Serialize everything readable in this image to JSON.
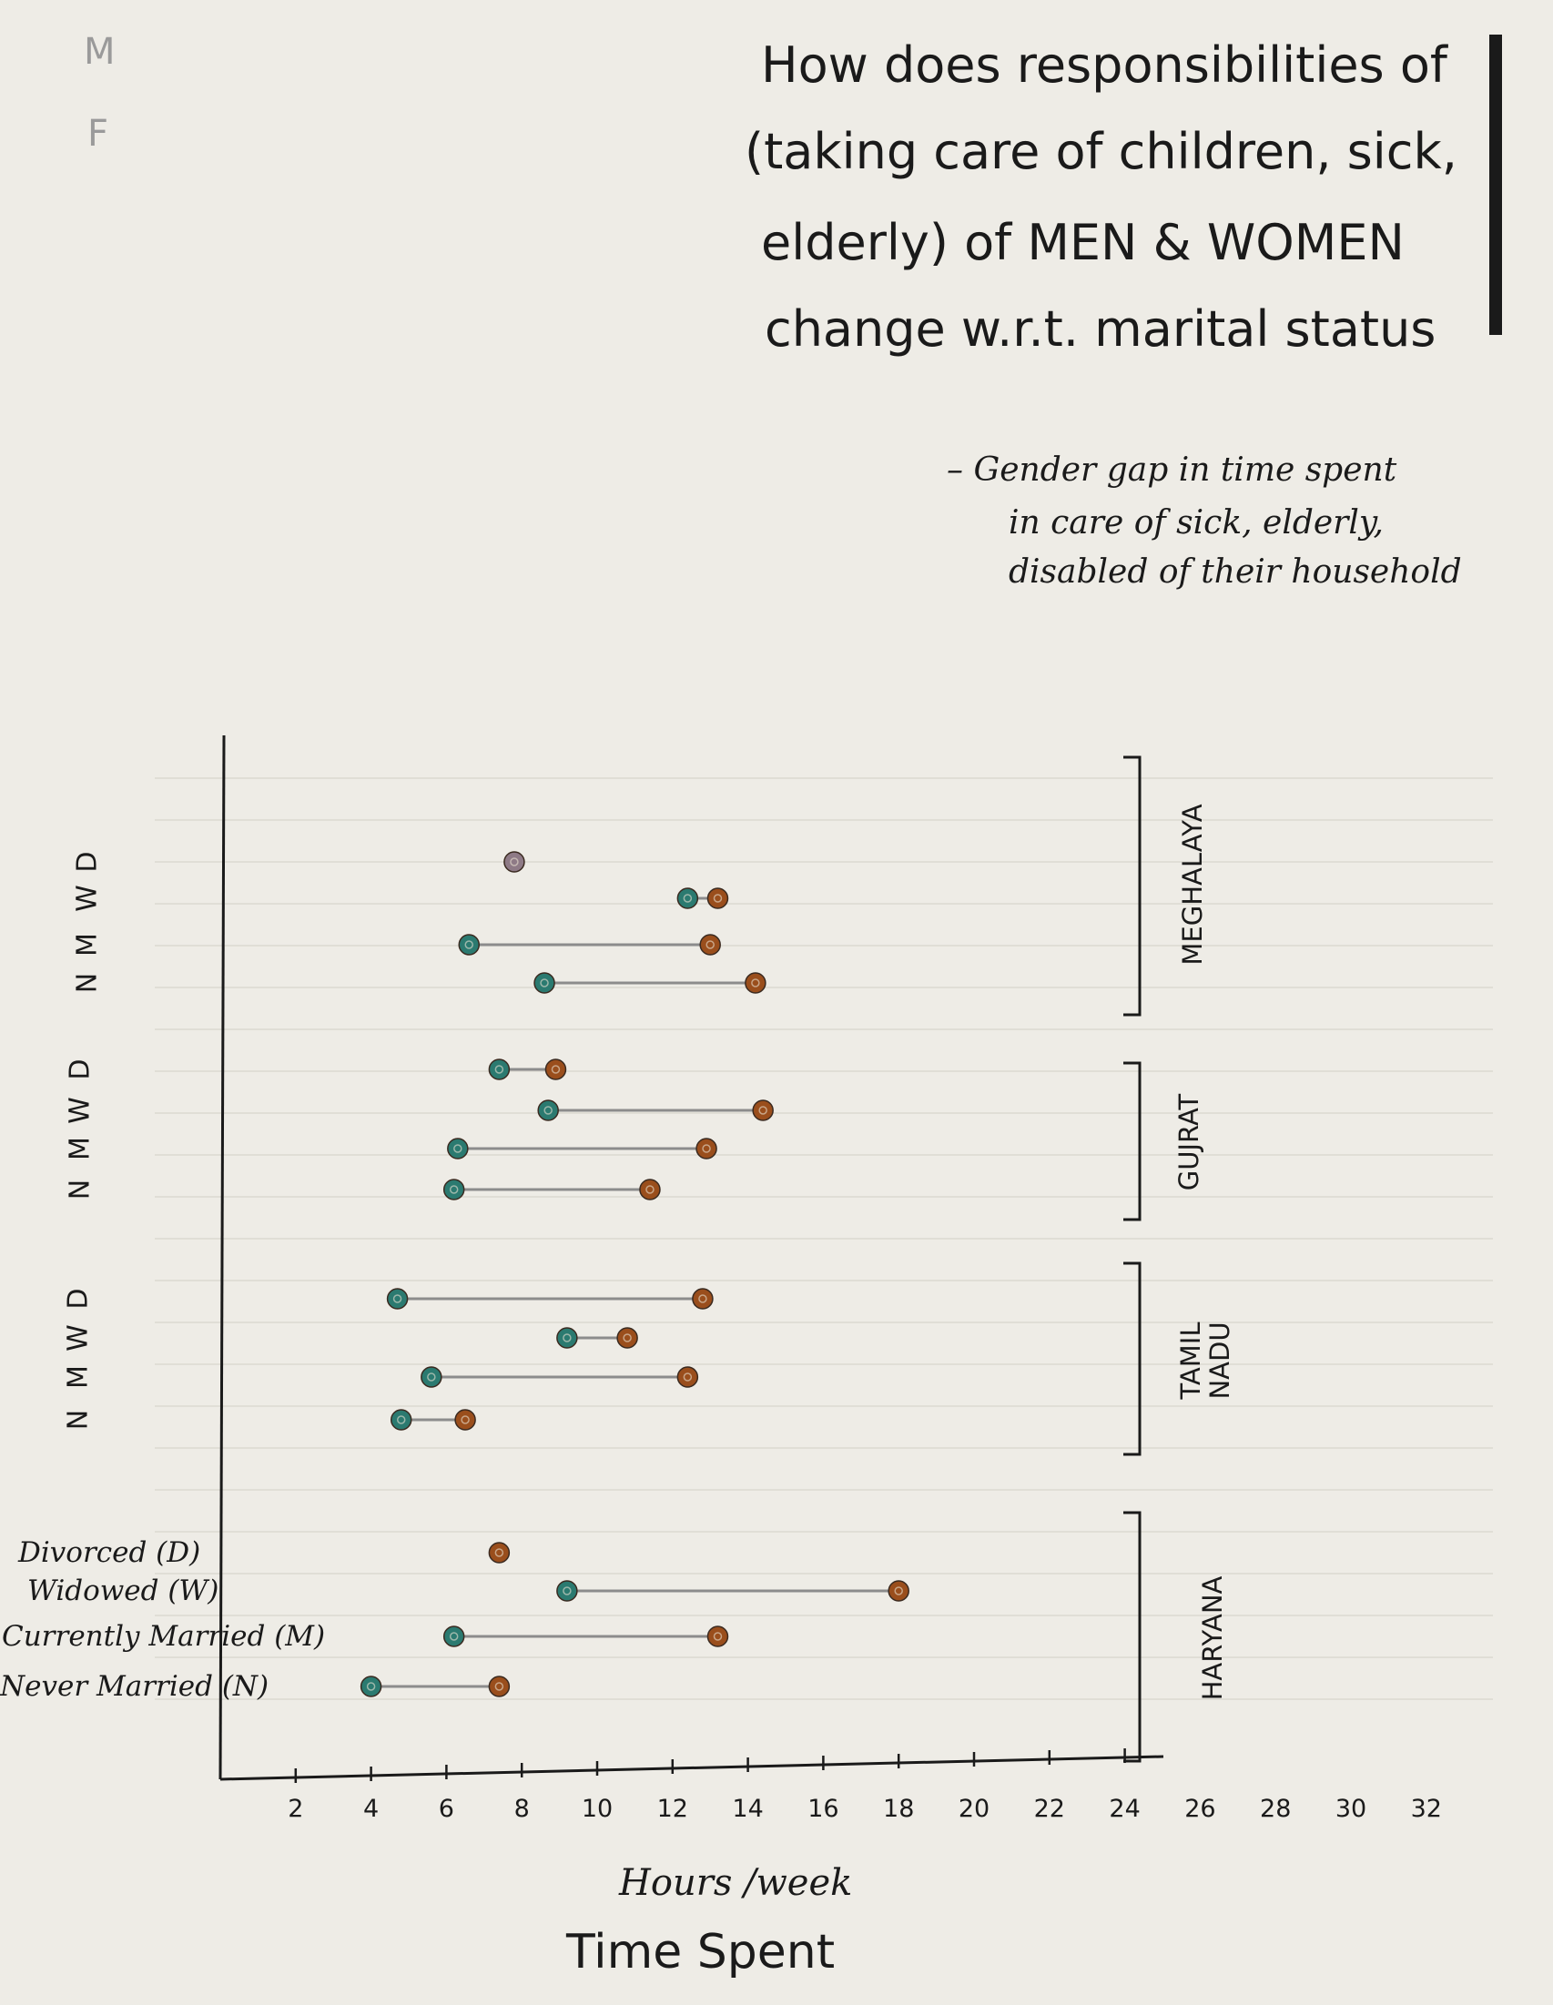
{
  "title": {
    "lines": [
      "How does responsibilities of",
      "(taking care of children, sick,",
      "elderly) of MEN & WOMEN",
      "change w.r.t. marital status"
    ]
  },
  "subtitle": {
    "lines": [
      "– Gender gap in time spent",
      "in care of sick, elderly,",
      "disabled of their household"
    ]
  },
  "corner_marks": {
    "m": "M",
    "f": "F"
  },
  "colors": {
    "men": "#2b7a70",
    "women": "#9a4e1c",
    "single": "#8e7a86",
    "connector": "#8c8c8c",
    "axis": "#1a1a1a",
    "paper": "#eeece6"
  },
  "chart_data": {
    "type": "dumbbell",
    "xlabel": "Hours /week",
    "xtitle": "Time Spent",
    "xlim": [
      0,
      32
    ],
    "xticks": [
      "2",
      "4",
      "6",
      "8",
      "10",
      "12",
      "14",
      "16",
      "18",
      "20",
      "22",
      "24",
      "26",
      "28",
      "30",
      "32"
    ],
    "row_letters": [
      "D",
      "W",
      "M",
      "N"
    ],
    "row_full_labels": [
      "Divorced (D)",
      "Widowed (W)",
      "Currently Married (M)",
      "Never Married (N)"
    ],
    "groups": [
      {
        "name": "MEGHALAYA",
        "rows": [
          {
            "status": "D",
            "men": null,
            "women": null,
            "single": 7.8
          },
          {
            "status": "W",
            "men": 12.4,
            "women": 13.2
          },
          {
            "status": "M",
            "men": 6.6,
            "women": 13.0
          },
          {
            "status": "N",
            "men": 8.6,
            "women": 14.2
          }
        ]
      },
      {
        "name": "GUJRAT",
        "rows": [
          {
            "status": "D",
            "men": 7.4,
            "women": 8.9
          },
          {
            "status": "W",
            "men": 8.7,
            "women": 14.4
          },
          {
            "status": "M",
            "men": 6.3,
            "women": 12.9
          },
          {
            "status": "N",
            "men": 6.2,
            "women": 11.4
          }
        ]
      },
      {
        "name": "TAMIL NADU",
        "rows": [
          {
            "status": "D",
            "men": 4.7,
            "women": 12.8
          },
          {
            "status": "W",
            "men": 9.2,
            "women": 10.8
          },
          {
            "status": "M",
            "men": 5.6,
            "women": 12.4
          },
          {
            "status": "N",
            "men": 4.8,
            "women": 6.5
          }
        ]
      },
      {
        "name": "HARYANA",
        "rows": [
          {
            "status": "D",
            "men": null,
            "women": 7.4
          },
          {
            "status": "W",
            "men": 9.2,
            "women": 18.0
          },
          {
            "status": "M",
            "men": 6.2,
            "women": 13.2
          },
          {
            "status": "N",
            "men": 4.0,
            "women": 7.4
          }
        ]
      }
    ]
  }
}
